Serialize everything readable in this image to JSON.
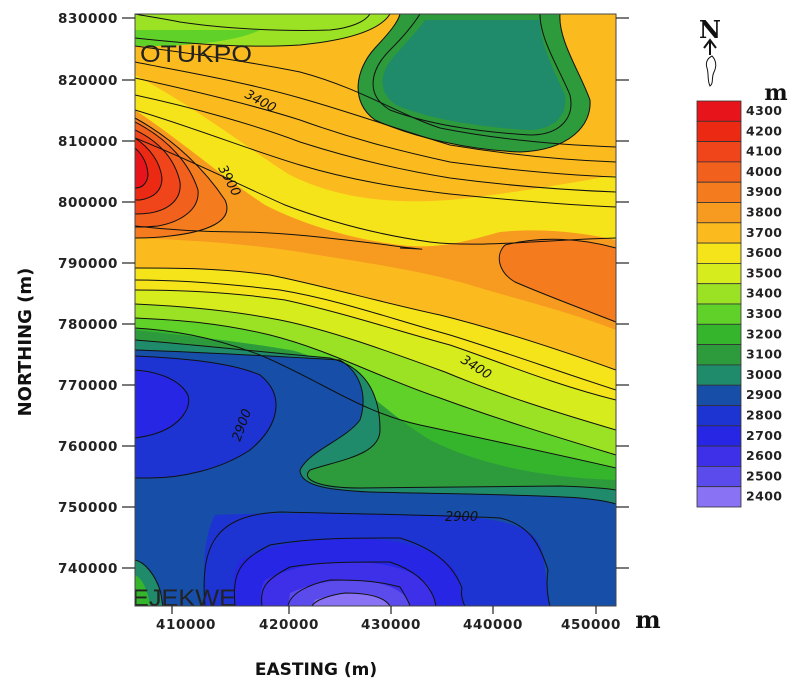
{
  "map": {
    "x_axis_title": "EASTING (m)",
    "y_axis_title": "NORTHING (m)",
    "x_unit": "m",
    "x_ticks": [
      "410000",
      "420000",
      "430000",
      "440000",
      "450000"
    ],
    "y_ticks": [
      "830000",
      "820000",
      "810000",
      "800000",
      "790000",
      "780000",
      "770000",
      "760000",
      "750000",
      "740000"
    ],
    "places": {
      "north": "OTUKPO",
      "south": "EJEKWE"
    },
    "contour_labels": {
      "upper_3400": "3400",
      "upper_3900": "3900",
      "right_3400": "3400",
      "left_2900": "2900",
      "lower_2900": "2900"
    },
    "north_arrow": {
      "letter": "N"
    },
    "legend": {
      "unit": "m",
      "levels": [
        {
          "label": "4300",
          "color": "#e8141c"
        },
        {
          "label": "4200",
          "color": "#ec2a14"
        },
        {
          "label": "4100",
          "color": "#f0441a"
        },
        {
          "label": "4000",
          "color": "#f2601e"
        },
        {
          "label": "3900",
          "color": "#f57c1e"
        },
        {
          "label": "3800",
          "color": "#f79a20"
        },
        {
          "label": "3700",
          "color": "#fbbb1e"
        },
        {
          "label": "3600",
          "color": "#f6e41a"
        },
        {
          "label": "3500",
          "color": "#d6ec1c"
        },
        {
          "label": "3400",
          "color": "#9be225"
        },
        {
          "label": "3300",
          "color": "#5fd128"
        },
        {
          "label": "3200",
          "color": "#35b52c"
        },
        {
          "label": "3100",
          "color": "#2d9a3c"
        },
        {
          "label": "3000",
          "color": "#1f8b6a"
        },
        {
          "label": "2900",
          "color": "#164ea8"
        },
        {
          "label": "2800",
          "color": "#1d34d2"
        },
        {
          "label": "2700",
          "color": "#2626e4"
        },
        {
          "label": "2600",
          "color": "#3d30e8"
        },
        {
          "label": "2500",
          "color": "#5c4bec"
        },
        {
          "label": "2400",
          "color": "#8a72f4"
        }
      ]
    }
  }
}
